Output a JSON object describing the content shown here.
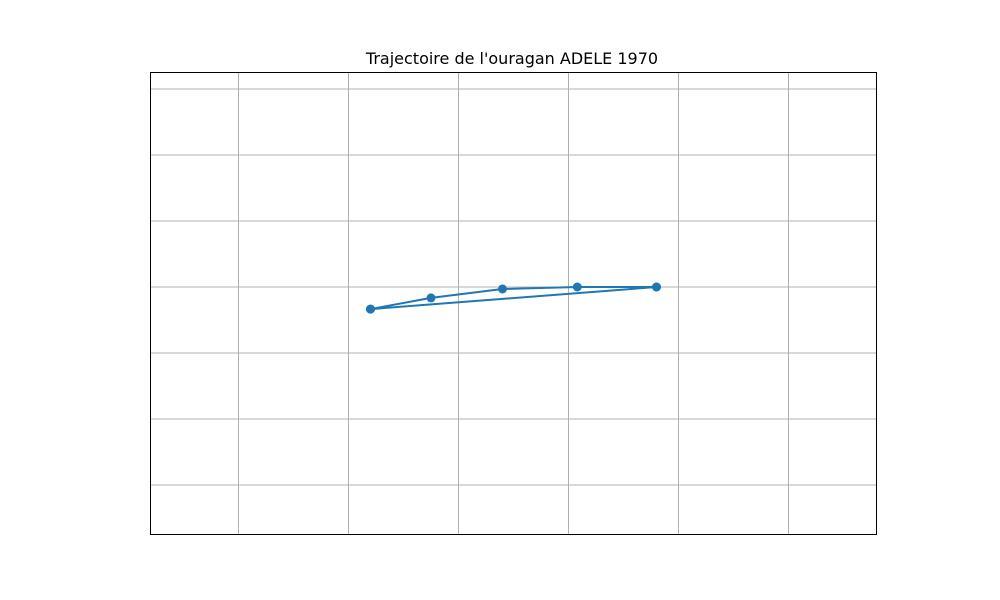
{
  "chart_data": {
    "type": "line",
    "title": "Trajectoire de l'ouragan ADELE 1970",
    "xlabel": "",
    "ylabel": "",
    "xlim": [
      -2.0,
      4.6
    ],
    "ylim": [
      -0.65,
      0.75
    ],
    "x_gridlines": [
      -1.2,
      -0.2,
      0.8,
      1.8,
      2.8,
      3.8
    ],
    "y_gridlines": [
      -0.5,
      -0.3,
      -0.1,
      0.1,
      0.3,
      0.5,
      0.7
    ],
    "grid": true,
    "marker": "circle",
    "color": "#1f77b4",
    "series": [
      {
        "x": [
          0.0,
          0.55,
          1.2,
          1.88,
          2.6,
          2.6,
          0.0
        ],
        "y": [
          0.033,
          0.067,
          0.094,
          0.1,
          0.1,
          0.1,
          0.033
        ]
      }
    ]
  }
}
